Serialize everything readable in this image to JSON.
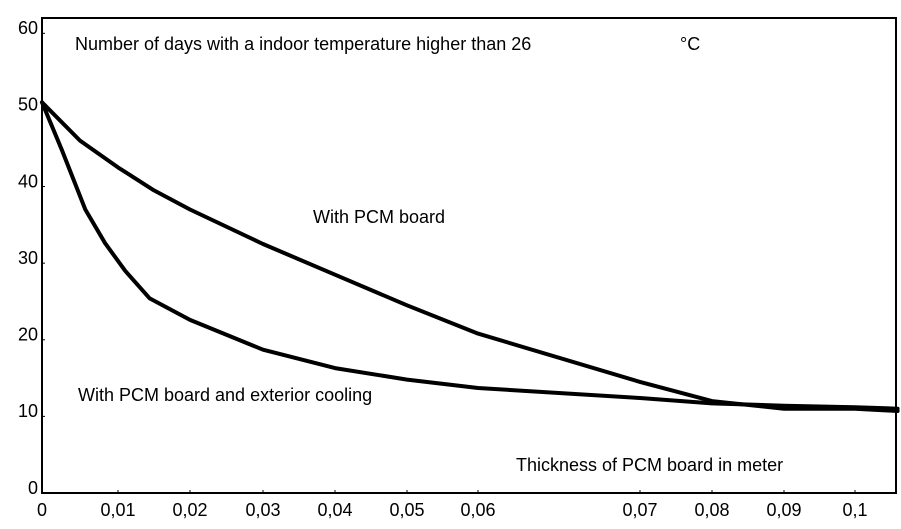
{
  "chart_data": {
    "type": "line",
    "title": "Number of days with a indoor temperature higher than 26",
    "annotations": [
      "°C"
    ],
    "xlabel": "Thickness of PCM board in meter",
    "series": [
      {
        "name": "With PCM board",
        "color": "#000000",
        "x": [
          0,
          0.005,
          0.01,
          0.015,
          0.02,
          0.03,
          0.04,
          0.05,
          0.06,
          0.07,
          0.08,
          0.09,
          0.1,
          0.106
        ],
        "values": [
          51,
          46,
          42.5,
          39.5,
          37,
          32.5,
          28.5,
          24.5,
          20.8,
          14.5,
          12,
          11,
          11,
          10.7
        ]
      },
      {
        "name": "With PCM board and exterior cooling",
        "color": "#000000",
        "x": [
          0,
          0.0026,
          0.0057,
          0.0083,
          0.011,
          0.0144,
          0.02,
          0.03,
          0.04,
          0.05,
          0.06,
          0.07,
          0.08,
          0.09,
          0.1,
          0.106
        ],
        "values": [
          51,
          44.8,
          37,
          32.6,
          29,
          25.4,
          22.6,
          18.7,
          16.3,
          14.8,
          13.7,
          12.4,
          11.7,
          11.4,
          11.2,
          11
        ]
      }
    ],
    "xlim": [
      0,
      0.106
    ],
    "xticks": [
      0,
      {
        "value": 0.01,
        "label": "0,01"
      },
      {
        "value": 0.02,
        "label": "0,02"
      },
      {
        "value": 0.03,
        "label": "0,03"
      },
      {
        "value": 0.04,
        "label": "0,04"
      },
      {
        "value": 0.05,
        "label": "0,05"
      },
      {
        "value": 0.06,
        "label": "0,06"
      },
      {
        "value": 0.07,
        "label": "0,07"
      },
      {
        "value": 0.08,
        "label": "0,08"
      },
      {
        "value": 0.09,
        "label": "0,09"
      },
      {
        "value": 0.1,
        "label": "0,1"
      }
    ],
    "ylim": [
      0,
      62
    ],
    "yticks": [
      0,
      10,
      20,
      30,
      40,
      50,
      60
    ],
    "grid": false
  }
}
